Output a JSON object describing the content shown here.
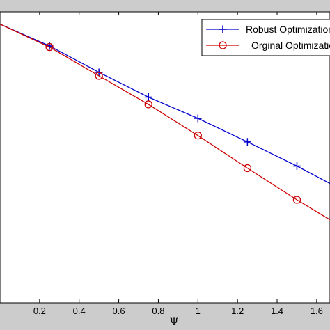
{
  "chart_data": {
    "type": "line",
    "xlabel": "Ψ",
    "ylabel": "",
    "title": "",
    "xlim": [
      0.0,
      1.7
    ],
    "x_ticks": [
      0.2,
      0.4,
      0.6,
      0.8,
      1,
      1.2,
      1.4,
      1.6
    ],
    "x_tick_labels": [
      "0.2",
      "0.4",
      "0.6",
      "0.8",
      "1",
      "1.2",
      "1.4",
      "1.6"
    ],
    "grid": false,
    "legend_position": "top-right",
    "series": [
      {
        "name": "Robust Optimization",
        "color": "#0000cc",
        "marker": "plus",
        "line_x": [
          0.0,
          0.25,
          0.5,
          0.75,
          1.0,
          1.25,
          1.5,
          1.7
        ],
        "line_y": [
          0.958,
          0.883,
          0.792,
          0.707,
          0.634,
          0.553,
          0.47,
          0.398
        ],
        "x": [
          0.25,
          0.5,
          0.75,
          1.0,
          1.25,
          1.5
        ],
        "values": [
          0.883,
          0.792,
          0.707,
          0.634,
          0.553,
          0.47
        ]
      },
      {
        "name": "Orginal Optimization",
        "color": "#cc0000",
        "marker": "circle",
        "line_x": [
          0.0,
          0.25,
          0.5,
          0.75,
          1.0,
          1.25,
          1.5,
          1.7
        ],
        "line_y": [
          0.958,
          0.879,
          0.78,
          0.682,
          0.575,
          0.463,
          0.354,
          0.272
        ],
        "x": [
          0.25,
          0.5,
          0.75,
          1.0,
          1.25,
          1.5
        ],
        "values": [
          0.879,
          0.78,
          0.682,
          0.575,
          0.463,
          0.354
        ]
      }
    ]
  }
}
